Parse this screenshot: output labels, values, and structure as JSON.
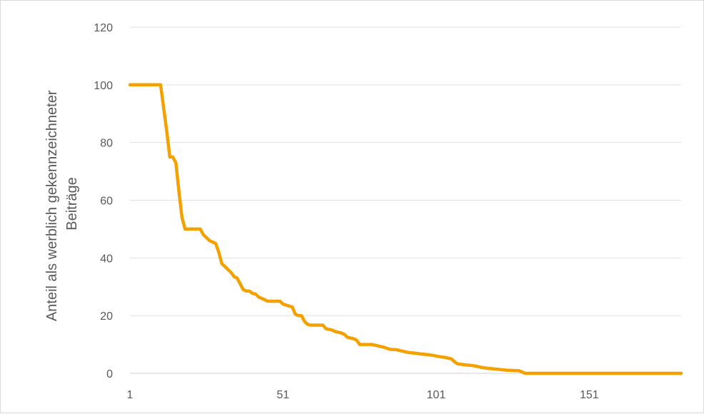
{
  "chart_data": {
    "type": "line",
    "title": "",
    "xlabel": "",
    "ylabel_lines": [
      "Anteil als werblich gekennzeichneter",
      "Beiträge"
    ],
    "ylim": [
      0,
      120
    ],
    "y_ticks": [
      0,
      20,
      40,
      60,
      80,
      100,
      120
    ],
    "xlim": [
      1,
      181
    ],
    "x_ticks": [
      1,
      51,
      101,
      151
    ],
    "grid": true,
    "legend": "none",
    "series": [
      {
        "color": "#F4A100",
        "points": [
          [
            1,
            100
          ],
          [
            5,
            100
          ],
          [
            10,
            100
          ],
          [
            11,
            100
          ],
          [
            12,
            92
          ],
          [
            13,
            84
          ],
          [
            14,
            75
          ],
          [
            15,
            75
          ],
          [
            16,
            73
          ],
          [
            17,
            63
          ],
          [
            18,
            54
          ],
          [
            19,
            50
          ],
          [
            20,
            50
          ],
          [
            21,
            50
          ],
          [
            23,
            50
          ],
          [
            24,
            50
          ],
          [
            25,
            48
          ],
          [
            26,
            47
          ],
          [
            27,
            46
          ],
          [
            28,
            45.5
          ],
          [
            29,
            45
          ],
          [
            30,
            42
          ],
          [
            31,
            38
          ],
          [
            32,
            37
          ],
          [
            33,
            36
          ],
          [
            34,
            35
          ],
          [
            35,
            33.5
          ],
          [
            36,
            33
          ],
          [
            37,
            31
          ],
          [
            38,
            29
          ],
          [
            39,
            28.5
          ],
          [
            40,
            28.5
          ],
          [
            41,
            27.7
          ],
          [
            42,
            27.5
          ],
          [
            43,
            26.5
          ],
          [
            44,
            26
          ],
          [
            45,
            25.5
          ],
          [
            46,
            25
          ],
          [
            48,
            25
          ],
          [
            50,
            25
          ],
          [
            51,
            24
          ],
          [
            53,
            23.3
          ],
          [
            54,
            23
          ],
          [
            55,
            20.5
          ],
          [
            56,
            20
          ],
          [
            57,
            20
          ],
          [
            58,
            18
          ],
          [
            59,
            17
          ],
          [
            60,
            16.7
          ],
          [
            62,
            16.7
          ],
          [
            64,
            16.7
          ],
          [
            65,
            15.5
          ],
          [
            67,
            15
          ],
          [
            68,
            14.5
          ],
          [
            70,
            14
          ],
          [
            71,
            13.5
          ],
          [
            72,
            12.5
          ],
          [
            74,
            12
          ],
          [
            75,
            11.5
          ],
          [
            76,
            10
          ],
          [
            78,
            10
          ],
          [
            80,
            10
          ],
          [
            82,
            9.5
          ],
          [
            84,
            9
          ],
          [
            86,
            8.3
          ],
          [
            88,
            8.2
          ],
          [
            90,
            7.7
          ],
          [
            92,
            7.2
          ],
          [
            94,
            7
          ],
          [
            96,
            6.7
          ],
          [
            98,
            6.5
          ],
          [
            100,
            6.2
          ],
          [
            102,
            5.8
          ],
          [
            104,
            5.5
          ],
          [
            106,
            5
          ],
          [
            107,
            4
          ],
          [
            108,
            3.3
          ],
          [
            110,
            3
          ],
          [
            112,
            2.8
          ],
          [
            114,
            2.5
          ],
          [
            116,
            2
          ],
          [
            118,
            1.7
          ],
          [
            120,
            1.5
          ],
          [
            122,
            1.3
          ],
          [
            124,
            1.1
          ],
          [
            126,
            1
          ],
          [
            128,
            0.9
          ],
          [
            129,
            0.5
          ],
          [
            130,
            0
          ],
          [
            140,
            0
          ],
          [
            150,
            0
          ],
          [
            160,
            0
          ],
          [
            170,
            0
          ],
          [
            181,
            0
          ]
        ]
      }
    ]
  }
}
